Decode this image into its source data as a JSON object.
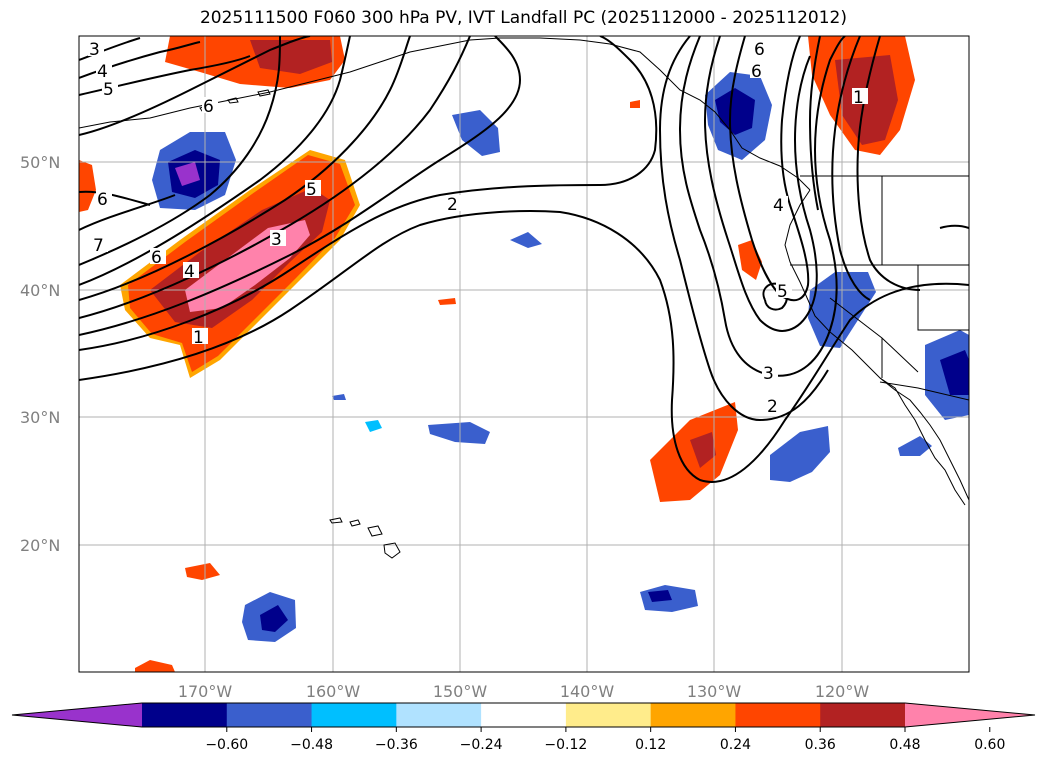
{
  "title": "2025111500 F060 300 hPa PV, IVT Landfall PC (2025112000 - 2025112012)",
  "map": {
    "lat_labels": [
      "50°N",
      "40°N",
      "30°N",
      "20°N"
    ],
    "lon_labels": [
      "170°W",
      "160°W",
      "150°W",
      "140°W",
      "130°W",
      "120°W"
    ],
    "colors": {
      "frame": "#000000",
      "grid": "#b0b0b0",
      "contour": "#000000",
      "coast": "#000000"
    }
  },
  "colorbar": {
    "tick_labels": [
      "−0.60",
      "−0.48",
      "−0.36",
      "−0.24",
      "−0.12",
      "0.12",
      "0.24",
      "0.36",
      "0.48",
      "0.60"
    ],
    "colors": [
      "#9932cc",
      "#00008b",
      "#3a5fcd",
      "#00bfff",
      "#b0e2ff",
      "#ffffff",
      "#ffec8b",
      "#ffa500",
      "#ff4500",
      "#b22222",
      "#ff82ab"
    ]
  },
  "pv_labels": [
    "3",
    "4",
    "5",
    "6",
    "6",
    "6",
    "7",
    "6",
    "4",
    "3",
    "5",
    "1",
    "2",
    "6",
    "5",
    "1",
    "4",
    "3",
    "2"
  ]
}
